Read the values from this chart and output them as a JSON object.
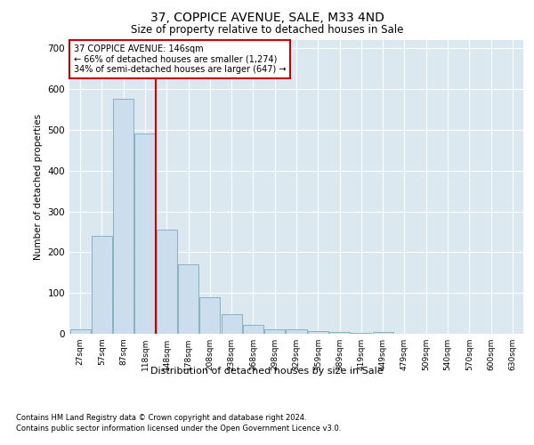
{
  "title1": "37, COPPICE AVENUE, SALE, M33 4ND",
  "title2": "Size of property relative to detached houses in Sale",
  "xlabel": "Distribution of detached houses by size in Sale",
  "ylabel": "Number of detached properties",
  "annotation_line1": "37 COPPICE AVENUE: 146sqm",
  "annotation_line2": "← 66% of detached houses are smaller (1,274)",
  "annotation_line3": "34% of semi-detached houses are larger (647) →",
  "bar_color": "#ccdded",
  "bar_edge_color": "#7aaabb",
  "vline_color": "#cc0000",
  "annotation_box_edge_color": "#cc0000",
  "fig_bg_color": "#ffffff",
  "plot_bg_color": "#dce8f0",
  "categories": [
    "27sqm",
    "57sqm",
    "87sqm",
    "118sqm",
    "148sqm",
    "178sqm",
    "208sqm",
    "238sqm",
    "268sqm",
    "298sqm",
    "329sqm",
    "359sqm",
    "389sqm",
    "419sqm",
    "449sqm",
    "479sqm",
    "509sqm",
    "540sqm",
    "570sqm",
    "600sqm",
    "630sqm"
  ],
  "values": [
    10,
    240,
    575,
    490,
    255,
    170,
    90,
    47,
    22,
    12,
    10,
    6,
    5,
    3,
    5,
    0,
    0,
    0,
    0,
    0,
    0
  ],
  "ylim": [
    0,
    720
  ],
  "yticks": [
    0,
    100,
    200,
    300,
    400,
    500,
    600,
    700
  ],
  "vline_x_index": 3.5,
  "footnote1": "Contains HM Land Registry data © Crown copyright and database right 2024.",
  "footnote2": "Contains public sector information licensed under the Open Government Licence v3.0."
}
